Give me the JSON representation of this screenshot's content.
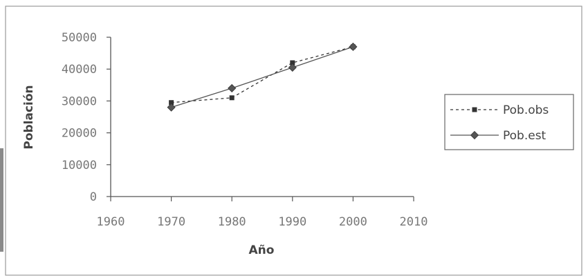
{
  "chart_data": {
    "type": "line",
    "title": "",
    "xlabel": "Año",
    "ylabel": "Población",
    "xlim": [
      1960,
      2010
    ],
    "ylim": [
      0,
      50000
    ],
    "x_ticks": [
      1960,
      1970,
      1980,
      1990,
      2000,
      2010
    ],
    "y_ticks": [
      0,
      10000,
      20000,
      30000,
      40000,
      50000
    ],
    "grid": false,
    "legend_position": "right",
    "x": [
      1970,
      1980,
      1990,
      2000
    ],
    "series": [
      {
        "name": "Pob.obs",
        "values": [
          29500,
          31000,
          42000,
          47000
        ],
        "style": "dashed",
        "marker": "square",
        "color": "#333333"
      },
      {
        "name": "Pob.est",
        "values": [
          28000,
          34000,
          40500,
          47000
        ],
        "style": "solid",
        "marker": "diamond",
        "color": "#555555"
      }
    ]
  }
}
